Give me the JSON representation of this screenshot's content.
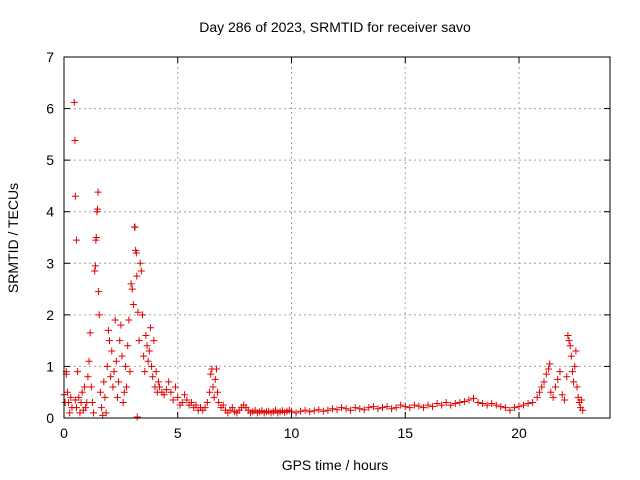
{
  "chart_data": {
    "type": "scatter",
    "title": "Day 286 of 2023, SRMTID for receiver savo",
    "xlabel": "GPS time / hours",
    "ylabel": "SRMTID / TECUs",
    "xlim": [
      0,
      24
    ],
    "ylim": [
      0,
      7
    ],
    "xticks": [
      0,
      5,
      10,
      15,
      20
    ],
    "yticks": [
      0,
      1,
      2,
      3,
      4,
      5,
      6,
      7
    ],
    "grid": true,
    "marker": "plus",
    "color": "#e00000",
    "points": [
      [
        0.0,
        0.45
      ],
      [
        0.05,
        0.3
      ],
      [
        0.1,
        0.85
      ],
      [
        0.1,
        0.9
      ],
      [
        0.15,
        0.5
      ],
      [
        0.2,
        0.3
      ],
      [
        0.25,
        0.1
      ],
      [
        0.3,
        0.4
      ],
      [
        0.35,
        0.2
      ],
      [
        0.45,
        6.12
      ],
      [
        0.48,
        5.38
      ],
      [
        0.5,
        4.3
      ],
      [
        0.55,
        3.45
      ],
      [
        0.6,
        0.9
      ],
      [
        0.5,
        0.35
      ],
      [
        0.55,
        0.2
      ],
      [
        0.65,
        0.4
      ],
      [
        0.7,
        0.1
      ],
      [
        0.75,
        0.3
      ],
      [
        0.8,
        0.5
      ],
      [
        0.85,
        0.15
      ],
      [
        0.9,
        0.6
      ],
      [
        0.95,
        0.2
      ],
      [
        1.0,
        0.3
      ],
      [
        1.05,
        0.8
      ],
      [
        1.1,
        1.1
      ],
      [
        1.15,
        1.65
      ],
      [
        1.2,
        0.6
      ],
      [
        1.25,
        0.3
      ],
      [
        1.3,
        0.1
      ],
      [
        1.35,
        2.85
      ],
      [
        1.38,
        2.95
      ],
      [
        1.4,
        3.45
      ],
      [
        1.42,
        3.5
      ],
      [
        1.45,
        4.0
      ],
      [
        1.47,
        4.05
      ],
      [
        1.5,
        4.38
      ],
      [
        1.52,
        2.45
      ],
      [
        1.55,
        2.0
      ],
      [
        1.6,
        0.5
      ],
      [
        1.65,
        0.2
      ],
      [
        1.7,
        0.05
      ],
      [
        1.75,
        0.7
      ],
      [
        1.8,
        0.4
      ],
      [
        1.85,
        0.1
      ],
      [
        1.9,
        1.0
      ],
      [
        1.95,
        1.7
      ],
      [
        2.0,
        1.5
      ],
      [
        2.05,
        0.8
      ],
      [
        2.1,
        1.3
      ],
      [
        2.15,
        0.6
      ],
      [
        2.2,
        0.9
      ],
      [
        2.25,
        1.9
      ],
      [
        2.3,
        1.1
      ],
      [
        2.35,
        0.4
      ],
      [
        2.4,
        0.7
      ],
      [
        2.45,
        1.5
      ],
      [
        2.5,
        1.8
      ],
      [
        2.55,
        1.2
      ],
      [
        2.6,
        0.3
      ],
      [
        2.65,
        0.5
      ],
      [
        2.7,
        1.0
      ],
      [
        2.75,
        0.6
      ],
      [
        2.8,
        1.4
      ],
      [
        2.85,
        1.9
      ],
      [
        2.9,
        0.9
      ],
      [
        2.95,
        2.6
      ],
      [
        3.0,
        2.5
      ],
      [
        3.05,
        2.2
      ],
      [
        3.1,
        3.7
      ],
      [
        3.12,
        3.7
      ],
      [
        3.15,
        3.25
      ],
      [
        3.18,
        3.2
      ],
      [
        3.2,
        2.75
      ],
      [
        3.22,
        0.02
      ],
      [
        3.25,
        2.05
      ],
      [
        3.3,
        1.5
      ],
      [
        3.35,
        3.0
      ],
      [
        3.4,
        2.85
      ],
      [
        3.45,
        2.0
      ],
      [
        3.5,
        1.2
      ],
      [
        3.55,
        0.9
      ],
      [
        3.6,
        1.6
      ],
      [
        3.65,
        1.4
      ],
      [
        3.7,
        1.1
      ],
      [
        3.75,
        1.3
      ],
      [
        3.8,
        1.75
      ],
      [
        3.85,
        1.0
      ],
      [
        3.9,
        0.8
      ],
      [
        3.95,
        1.5
      ],
      [
        4.0,
        0.6
      ],
      [
        4.05,
        0.9
      ],
      [
        4.1,
        0.5
      ],
      [
        4.15,
        0.7
      ],
      [
        4.2,
        0.6
      ],
      [
        4.3,
        0.5
      ],
      [
        4.4,
        0.45
      ],
      [
        4.5,
        0.55
      ],
      [
        4.6,
        0.7
      ],
      [
        4.7,
        0.5
      ],
      [
        4.8,
        0.35
      ],
      [
        4.9,
        0.6
      ],
      [
        5.0,
        0.4
      ],
      [
        5.1,
        0.25
      ],
      [
        5.2,
        0.3
      ],
      [
        5.3,
        0.45
      ],
      [
        5.4,
        0.35
      ],
      [
        5.5,
        0.25
      ],
      [
        5.6,
        0.3
      ],
      [
        5.7,
        0.2
      ],
      [
        5.8,
        0.25
      ],
      [
        5.9,
        0.15
      ],
      [
        6.0,
        0.2
      ],
      [
        6.1,
        0.15
      ],
      [
        6.2,
        0.2
      ],
      [
        6.3,
        0.3
      ],
      [
        6.4,
        0.5
      ],
      [
        6.45,
        0.85
      ],
      [
        6.5,
        0.95
      ],
      [
        6.55,
        0.6
      ],
      [
        6.6,
        0.4
      ],
      [
        6.65,
        0.75
      ],
      [
        6.7,
        0.95
      ],
      [
        6.75,
        0.5
      ],
      [
        6.8,
        0.3
      ],
      [
        6.9,
        0.2
      ],
      [
        7.0,
        0.25
      ],
      [
        7.1,
        0.15
      ],
      [
        7.2,
        0.1
      ],
      [
        7.3,
        0.15
      ],
      [
        7.4,
        0.2
      ],
      [
        7.5,
        0.12
      ],
      [
        7.6,
        0.1
      ],
      [
        7.7,
        0.15
      ],
      [
        7.8,
        0.2
      ],
      [
        7.9,
        0.25
      ],
      [
        8.0,
        0.2
      ],
      [
        8.1,
        0.15
      ],
      [
        8.2,
        0.1
      ],
      [
        8.3,
        0.12
      ],
      [
        8.4,
        0.15
      ],
      [
        8.5,
        0.1
      ],
      [
        8.6,
        0.12
      ],
      [
        8.7,
        0.14
      ],
      [
        8.8,
        0.1
      ],
      [
        8.9,
        0.12
      ],
      [
        9.0,
        0.13
      ],
      [
        9.1,
        0.1
      ],
      [
        9.2,
        0.12
      ],
      [
        9.3,
        0.15
      ],
      [
        9.4,
        0.1
      ],
      [
        9.5,
        0.12
      ],
      [
        9.6,
        0.14
      ],
      [
        9.7,
        0.11
      ],
      [
        9.8,
        0.13
      ],
      [
        9.9,
        0.15
      ],
      [
        10.0,
        0.12
      ],
      [
        10.2,
        0.1
      ],
      [
        10.4,
        0.13
      ],
      [
        10.6,
        0.15
      ],
      [
        10.8,
        0.12
      ],
      [
        11.0,
        0.14
      ],
      [
        11.2,
        0.16
      ],
      [
        11.4,
        0.13
      ],
      [
        11.6,
        0.15
      ],
      [
        11.8,
        0.18
      ],
      [
        12.0,
        0.16
      ],
      [
        12.2,
        0.2
      ],
      [
        12.4,
        0.18
      ],
      [
        12.6,
        0.15
      ],
      [
        12.8,
        0.2
      ],
      [
        13.0,
        0.18
      ],
      [
        13.2,
        0.16
      ],
      [
        13.4,
        0.2
      ],
      [
        13.6,
        0.22
      ],
      [
        13.8,
        0.18
      ],
      [
        14.0,
        0.2
      ],
      [
        14.2,
        0.22
      ],
      [
        14.4,
        0.18
      ],
      [
        14.6,
        0.2
      ],
      [
        14.8,
        0.25
      ],
      [
        15.0,
        0.22
      ],
      [
        15.2,
        0.2
      ],
      [
        15.4,
        0.25
      ],
      [
        15.6,
        0.23
      ],
      [
        15.8,
        0.2
      ],
      [
        16.0,
        0.25
      ],
      [
        16.2,
        0.22
      ],
      [
        16.4,
        0.28
      ],
      [
        16.6,
        0.25
      ],
      [
        16.8,
        0.3
      ],
      [
        17.0,
        0.25
      ],
      [
        17.2,
        0.28
      ],
      [
        17.4,
        0.3
      ],
      [
        17.6,
        0.32
      ],
      [
        17.8,
        0.35
      ],
      [
        18.0,
        0.38
      ],
      [
        18.2,
        0.3
      ],
      [
        18.4,
        0.28
      ],
      [
        18.6,
        0.25
      ],
      [
        18.8,
        0.28
      ],
      [
        19.0,
        0.25
      ],
      [
        19.2,
        0.22
      ],
      [
        19.4,
        0.2
      ],
      [
        19.6,
        0.15
      ],
      [
        19.8,
        0.2
      ],
      [
        20.0,
        0.22
      ],
      [
        20.2,
        0.25
      ],
      [
        20.4,
        0.28
      ],
      [
        20.6,
        0.3
      ],
      [
        20.8,
        0.4
      ],
      [
        20.9,
        0.5
      ],
      [
        21.0,
        0.6
      ],
      [
        21.1,
        0.7
      ],
      [
        21.2,
        0.85
      ],
      [
        21.3,
        0.95
      ],
      [
        21.35,
        1.05
      ],
      [
        21.4,
        0.5
      ],
      [
        21.5,
        0.4
      ],
      [
        21.6,
        0.6
      ],
      [
        21.7,
        0.75
      ],
      [
        21.8,
        0.9
      ],
      [
        21.9,
        0.45
      ],
      [
        22.0,
        0.35
      ],
      [
        22.1,
        0.8
      ],
      [
        22.15,
        1.6
      ],
      [
        22.2,
        1.5
      ],
      [
        22.25,
        1.4
      ],
      [
        22.3,
        1.2
      ],
      [
        22.35,
        0.9
      ],
      [
        22.4,
        0.7
      ],
      [
        22.45,
        1.0
      ],
      [
        22.5,
        1.3
      ],
      [
        22.55,
        0.6
      ],
      [
        22.6,
        0.4
      ],
      [
        22.65,
        0.3
      ],
      [
        22.7,
        0.2
      ],
      [
        22.75,
        0.35
      ],
      [
        22.8,
        0.15
      ]
    ]
  }
}
